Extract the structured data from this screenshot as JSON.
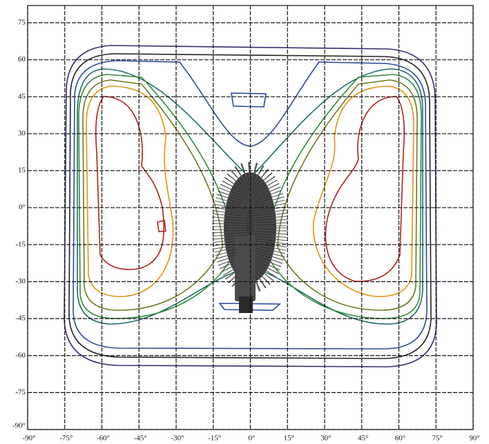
{
  "chart_data": {
    "type": "contour",
    "xlim": [
      -90,
      90
    ],
    "ylim": [
      -90,
      82
    ],
    "xticks": [
      {
        "value": -90,
        "label": "-90°"
      },
      {
        "value": -75,
        "label": "-75°"
      },
      {
        "value": -60,
        "label": "-60°"
      },
      {
        "value": -45,
        "label": "-45°"
      },
      {
        "value": -30,
        "label": "-30°"
      },
      {
        "value": -15,
        "label": "-15°"
      },
      {
        "value": 0,
        "label": "0°"
      },
      {
        "value": 15,
        "label": "15°"
      },
      {
        "value": 30,
        "label": "30°"
      },
      {
        "value": 45,
        "label": "45°"
      },
      {
        "value": 60,
        "label": "60°"
      },
      {
        "value": 75,
        "label": "75°"
      },
      {
        "value": 90,
        "label": "90°"
      }
    ],
    "yticks": [
      75,
      60,
      45,
      30,
      15,
      {
        "value": 0,
        "label": "0°"
      },
      -15,
      -30,
      -45,
      -60,
      -75,
      {
        "value": -90,
        "label": "-90°"
      }
    ],
    "grid": true
  }
}
